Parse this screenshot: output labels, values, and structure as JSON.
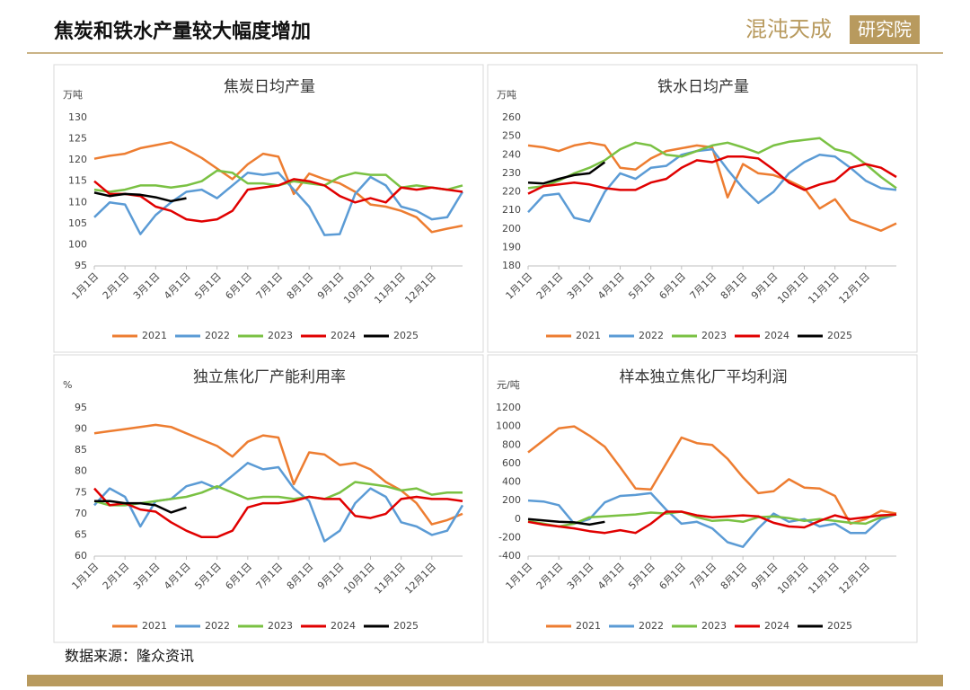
{
  "header": {
    "title": "焦炭和铁水产量较大幅度增加",
    "logo_name": "混沌天成",
    "logo_dept": "研究院"
  },
  "source": "数据来源：隆众资讯",
  "chart_data": [
    {
      "type": "line",
      "title": "焦炭日均产量",
      "ylabel": "万吨",
      "categories": [
        "1月1日",
        null,
        "2月1日",
        null,
        "3月1日",
        null,
        "4月1日",
        null,
        "5月1日",
        null,
        "6月1日",
        null,
        "7月1日",
        null,
        "8月1日",
        null,
        "9月1日",
        null,
        "10月1日",
        null,
        "11月1日",
        null,
        "12月1日",
        null,
        null
      ],
      "ylim": [
        95,
        130
      ],
      "yticks": [
        95,
        100,
        105,
        110,
        115,
        120,
        125,
        130
      ],
      "grid": false,
      "legend": "bottom",
      "series": [
        {
          "name": "2021",
          "color": "#ed7d31",
          "values": [
            120.3,
            121,
            121.5,
            122.8,
            123.5,
            124.2,
            122.5,
            120.5,
            118,
            115.5,
            119,
            121.5,
            120.8,
            112,
            116.8,
            115.5,
            114.5,
            112.5,
            109.5,
            109,
            108,
            106.5,
            103,
            103.8,
            104.5
          ]
        },
        {
          "name": "2022",
          "color": "#5b9bd5",
          "values": [
            106.5,
            110,
            109.5,
            102.5,
            107,
            110,
            112.5,
            113,
            111,
            114,
            117,
            116.5,
            117,
            113,
            109,
            102.3,
            102.5,
            112,
            116,
            114,
            109,
            108,
            106,
            106.5,
            112.5
          ]
        },
        {
          "name": "2023",
          "color": "#7ac143",
          "values": [
            113,
            112.5,
            113,
            114,
            114,
            113.5,
            114,
            115,
            117.5,
            117,
            114.5,
            114.5,
            114,
            115,
            114.5,
            114,
            116,
            117,
            116.5,
            116.5,
            113.5,
            114,
            113.5,
            113,
            114
          ]
        },
        {
          "name": "2024",
          "color": "#e00000",
          "values": [
            115,
            112,
            112,
            111.5,
            109,
            108,
            106,
            105.5,
            106,
            108,
            113,
            113.5,
            114,
            115.5,
            115,
            114,
            111.5,
            110,
            111,
            110,
            113.5,
            113,
            113.5,
            113,
            112.5
          ]
        },
        {
          "name": "2025",
          "color": "#000000",
          "values": [
            112.3,
            111.5,
            112,
            111.8,
            111.2,
            110.3,
            111,
            null,
            null,
            null,
            null,
            null,
            null,
            null,
            null,
            null,
            null,
            null,
            null,
            null,
            null,
            null,
            null,
            null,
            null
          ]
        }
      ]
    },
    {
      "type": "line",
      "title": "铁水日均产量",
      "ylabel": "万吨",
      "categories": [
        "1月1日",
        null,
        "2月1日",
        null,
        "3月1日",
        null,
        "4月1日",
        null,
        "5月1日",
        null,
        "6月1日",
        null,
        "7月1日",
        null,
        "8月1日",
        null,
        "9月1日",
        null,
        "10月1日",
        null,
        "11月1日",
        null,
        "12月1日",
        null,
        null
      ],
      "ylim": [
        180,
        260
      ],
      "yticks": [
        180,
        190,
        200,
        210,
        220,
        230,
        240,
        250,
        260
      ],
      "grid": false,
      "legend": "bottom",
      "series": [
        {
          "name": "2021",
          "color": "#ed7d31",
          "values": [
            245,
            244,
            242,
            245,
            246.5,
            245,
            233,
            232,
            238,
            242,
            243.5,
            245,
            244,
            217,
            235,
            230,
            229,
            226,
            222,
            211,
            216,
            205,
            202,
            199,
            203
          ]
        },
        {
          "name": "2022",
          "color": "#5b9bd5",
          "values": [
            209,
            218,
            219,
            206,
            204,
            220,
            230,
            227,
            233,
            234,
            240,
            242,
            243,
            232,
            222,
            214,
            220,
            230,
            236,
            240,
            239,
            233,
            226,
            222,
            221
          ]
        },
        {
          "name": "2023",
          "color": "#7ac143",
          "values": [
            222,
            223,
            226,
            230,
            233,
            237,
            243,
            246.5,
            245,
            240,
            239,
            242,
            245,
            246.5,
            244,
            241,
            245,
            247,
            248,
            249,
            243,
            241,
            235,
            228,
            222
          ]
        },
        {
          "name": "2024",
          "color": "#e00000",
          "values": [
            219,
            223,
            224,
            225,
            224,
            222,
            221,
            221,
            225,
            227,
            233,
            237,
            236,
            239,
            239,
            238,
            232,
            225,
            221,
            224,
            226,
            233,
            235,
            233,
            228
          ]
        },
        {
          "name": "2025",
          "color": "#000000",
          "values": [
            225,
            224.5,
            227,
            229,
            230,
            236,
            null,
            null,
            null,
            null,
            null,
            null,
            null,
            null,
            null,
            null,
            null,
            null,
            null,
            null,
            null,
            null,
            null,
            null,
            null
          ]
        }
      ]
    },
    {
      "type": "line",
      "title": "独立焦化厂产能利用率",
      "ylabel": "%",
      "categories": [
        "1月1日",
        null,
        "2月1日",
        null,
        "3月1日",
        null,
        "4月1日",
        null,
        "5月1日",
        null,
        "6月1日",
        null,
        "7月1日",
        null,
        "8月1日",
        null,
        "9月1日",
        null,
        "10月1日",
        null,
        "11月1日",
        null,
        "12月1日",
        null,
        null
      ],
      "ylim": [
        60,
        95
      ],
      "yticks": [
        60,
        65,
        70,
        75,
        80,
        85,
        90,
        95
      ],
      "grid": false,
      "legend": "bottom",
      "series": [
        {
          "name": "2021",
          "color": "#ed7d31",
          "values": [
            89,
            89.5,
            90,
            90.5,
            91,
            90.5,
            89,
            87.5,
            86,
            83.5,
            87,
            88.5,
            88,
            77,
            84.5,
            84,
            81.5,
            82,
            80.5,
            77.5,
            75.5,
            72.5,
            67.5,
            68.5,
            70
          ]
        },
        {
          "name": "2022",
          "color": "#5b9bd5",
          "values": [
            72,
            76,
            74,
            67,
            73,
            73.5,
            76.5,
            77.5,
            76,
            79,
            82,
            80.5,
            81,
            76,
            73,
            63.5,
            66,
            72.5,
            76,
            74,
            68,
            67,
            65,
            66,
            72
          ]
        },
        {
          "name": "2023",
          "color": "#7ac143",
          "values": [
            73,
            72,
            72,
            72.5,
            73,
            73.5,
            74,
            75,
            76.5,
            75,
            73.5,
            74,
            74,
            73.5,
            74,
            73.5,
            75,
            77.5,
            77,
            76.5,
            75.5,
            76,
            74.5,
            75,
            75
          ]
        },
        {
          "name": "2024",
          "color": "#e00000",
          "values": [
            76,
            72,
            72.5,
            71,
            70.5,
            68,
            66,
            64.5,
            64.5,
            66,
            71.5,
            72.5,
            72.5,
            73,
            74,
            73.5,
            73.5,
            69.5,
            69,
            70,
            73.5,
            74,
            73.5,
            73.5,
            73
          ]
        },
        {
          "name": "2025",
          "color": "#000000",
          "values": [
            73,
            73,
            72.5,
            72.5,
            72,
            70.3,
            71.5,
            null,
            null,
            null,
            null,
            null,
            null,
            null,
            null,
            null,
            null,
            null,
            null,
            null,
            null,
            null,
            null,
            null,
            null
          ]
        }
      ]
    },
    {
      "type": "line",
      "title": "样本独立焦化厂平均利润",
      "ylabel": "元/吨",
      "categories": [
        "1月1日",
        null,
        "2月1日",
        null,
        "3月1日",
        null,
        "4月1日",
        null,
        "5月1日",
        null,
        "6月1日",
        null,
        "7月1日",
        null,
        "8月1日",
        null,
        "9月1日",
        null,
        "10月1日",
        null,
        "11月1日",
        null,
        "12月1日",
        null,
        null
      ],
      "ylim": [
        -400,
        1200
      ],
      "yticks": [
        -400,
        -200,
        0,
        200,
        400,
        600,
        800,
        1000,
        1200
      ],
      "grid": false,
      "legend": "bottom",
      "series": [
        {
          "name": "2021",
          "color": "#ed7d31",
          "values": [
            720,
            850,
            980,
            1000,
            900,
            780,
            560,
            330,
            320,
            600,
            880,
            820,
            800,
            650,
            450,
            280,
            300,
            430,
            340,
            330,
            250,
            -50,
            0,
            90,
            60
          ]
        },
        {
          "name": "2022",
          "color": "#5b9bd5",
          "values": [
            200,
            190,
            150,
            -50,
            0,
            180,
            250,
            260,
            280,
            100,
            -50,
            -30,
            -100,
            -250,
            -300,
            -100,
            60,
            -30,
            0,
            -80,
            -50,
            -150,
            -150,
            0,
            50
          ]
        },
        {
          "name": "2023",
          "color": "#7ac143",
          "values": [
            -20,
            -50,
            -80,
            -50,
            20,
            30,
            40,
            50,
            70,
            60,
            80,
            20,
            -20,
            -10,
            -30,
            20,
            30,
            10,
            -20,
            0,
            -20,
            -40,
            -50,
            20,
            50
          ]
        },
        {
          "name": "2024",
          "color": "#e00000",
          "values": [
            -30,
            -60,
            -80,
            -100,
            -130,
            -150,
            -120,
            -150,
            -50,
            80,
            80,
            40,
            20,
            30,
            40,
            30,
            -40,
            -80,
            -90,
            -20,
            40,
            0,
            20,
            40,
            50
          ]
        },
        {
          "name": "2025",
          "color": "#000000",
          "values": [
            0,
            -15,
            -30,
            -35,
            -60,
            -30,
            null,
            null,
            null,
            null,
            null,
            null,
            null,
            null,
            null,
            null,
            null,
            null,
            null,
            null,
            null,
            null,
            null,
            null,
            null
          ]
        }
      ]
    }
  ]
}
